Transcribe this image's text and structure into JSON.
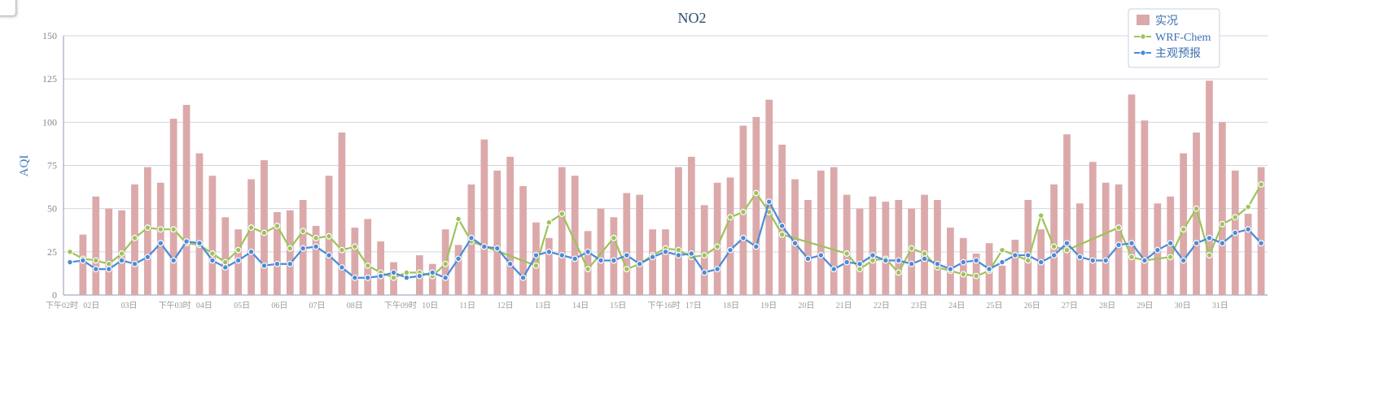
{
  "corner_checkbox": {
    "checked": false
  },
  "chart_data": {
    "type": "bar+line",
    "title": "NO2",
    "ylabel": "AQI",
    "xlabel": "",
    "ylim": [
      0,
      150
    ],
    "yticks": [
      0,
      25,
      50,
      75,
      100,
      125,
      150
    ],
    "grid": true,
    "legend_position": "top-right",
    "colors": {
      "bar": "#dca9ab",
      "wrf": "#9dc35a",
      "subjective": "#4a8bd8",
      "grid": "#d0d6e2",
      "axis": "#8899bb"
    },
    "x_tick_labels": [
      "下午02时",
      "02日",
      "03日",
      "下午03时",
      "04日",
      "05日",
      "06日",
      "07日",
      "08日",
      "下午09时",
      "10日",
      "11日",
      "12日",
      "13日",
      "14日",
      "15日",
      "下午16时",
      "17日",
      "18日",
      "19日",
      "20日",
      "21日",
      "22日",
      "23日",
      "24日",
      "25日",
      "26日",
      "27日",
      "28日",
      "29日",
      "30日",
      "31日"
    ],
    "series": [
      {
        "name": "实况",
        "kind": "bar",
        "values": [
          null,
          35,
          57,
          50,
          49,
          64,
          74,
          65,
          102,
          110,
          82,
          69,
          45,
          38,
          67,
          78,
          48,
          49,
          55,
          40,
          69,
          94,
          39,
          44,
          31,
          19,
          null,
          23,
          18,
          38,
          29,
          64,
          90,
          72,
          80,
          63,
          42,
          33,
          74,
          69,
          37,
          50,
          45,
          59,
          58,
          38,
          38,
          74,
          80,
          52,
          65,
          68,
          98,
          103,
          113,
          87,
          67,
          55,
          72,
          74,
          58,
          50,
          57,
          54,
          55,
          50,
          58,
          55,
          39,
          33,
          24,
          30,
          17,
          32,
          55,
          38,
          64,
          93,
          53,
          77,
          65,
          64,
          116,
          101,
          53,
          57,
          82,
          94,
          124,
          100,
          72,
          47,
          74
        ]
      },
      {
        "name": "WRF-Chem",
        "kind": "line",
        "values": [
          25,
          21,
          20,
          18,
          24,
          33,
          39,
          38,
          38,
          30,
          29,
          24,
          19,
          26,
          39,
          36,
          40,
          27,
          37,
          33,
          34,
          26,
          28,
          17,
          13,
          10,
          13,
          13,
          11,
          18,
          44,
          31,
          null,
          null,
          null,
          null,
          17,
          42,
          47,
          null,
          15,
          null,
          33,
          15,
          18,
          23,
          27,
          26,
          22,
          23,
          28,
          45,
          48,
          59,
          48,
          35,
          null,
          null,
          null,
          null,
          24,
          15,
          20,
          21,
          13,
          27,
          24,
          16,
          14,
          12,
          11,
          14,
          26,
          23,
          20,
          46,
          28,
          26,
          null,
          null,
          null,
          39,
          22,
          20,
          null,
          22,
          38,
          50,
          23,
          41,
          45,
          51,
          64
        ]
      },
      {
        "name": "主观预报",
        "kind": "line",
        "values": [
          19,
          20,
          15,
          15,
          20,
          18,
          22,
          30,
          20,
          31,
          30,
          20,
          16,
          20,
          25,
          17,
          18,
          18,
          27,
          28,
          23,
          16,
          10,
          10,
          11,
          13,
          10,
          11,
          13,
          10,
          21,
          33,
          28,
          27,
          18,
          10,
          23,
          25,
          23,
          21,
          25,
          20,
          20,
          23,
          18,
          22,
          25,
          23,
          24,
          13,
          15,
          26,
          33,
          28,
          54,
          40,
          30,
          21,
          23,
          15,
          19,
          18,
          23,
          20,
          20,
          18,
          21,
          18,
          15,
          19,
          20,
          15,
          19,
          23,
          23,
          19,
          23,
          30,
          22,
          20,
          20,
          29,
          30,
          20,
          26,
          30,
          20,
          30,
          33,
          30,
          36,
          38,
          30
        ]
      }
    ]
  }
}
